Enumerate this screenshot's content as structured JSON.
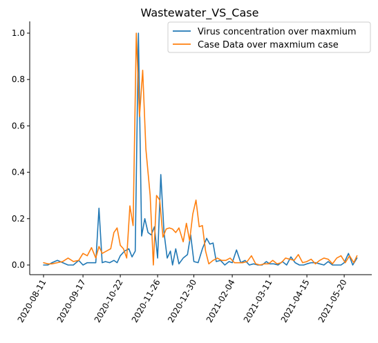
{
  "chart_data": {
    "type": "line",
    "title": "Wastewater_VS_Case",
    "xlabel": "",
    "ylabel": "",
    "x_tick_labels": [
      "2020-08-11",
      "2020-09-17",
      "2020-10-22",
      "2020-11-26",
      "2020-12-30",
      "2021-02-04",
      "2021-03-11",
      "2021-04-15",
      "2021-05-20"
    ],
    "ylim": [
      -0.04,
      1.05
    ],
    "yticks": [
      0.0,
      0.2,
      0.4,
      0.6,
      0.8,
      1.0
    ],
    "ytick_labels": [
      "0.0",
      "0.2",
      "0.4",
      "0.6",
      "0.8",
      "1.0"
    ],
    "grid": false,
    "legend_position": "top-right",
    "series": [
      {
        "name": "Virus concentration over maxmium",
        "color": "#1f77b4",
        "points": [
          [
            "2020-08-11",
            0.0
          ],
          [
            "2020-08-15",
            0.0
          ],
          [
            "2020-08-19",
            0.01
          ],
          [
            "2020-08-24",
            0.02
          ],
          [
            "2020-08-29",
            0.01
          ],
          [
            "2020-09-03",
            0.0
          ],
          [
            "2020-09-08",
            0.0
          ],
          [
            "2020-09-13",
            0.02
          ],
          [
            "2020-09-17",
            0.0
          ],
          [
            "2020-09-21",
            0.01
          ],
          [
            "2020-09-25",
            0.01
          ],
          [
            "2020-09-29",
            0.01
          ],
          [
            "2020-10-02",
            0.245
          ],
          [
            "2020-10-05",
            0.01
          ],
          [
            "2020-10-08",
            0.015
          ],
          [
            "2020-10-12",
            0.01
          ],
          [
            "2020-10-16",
            0.02
          ],
          [
            "2020-10-19",
            0.01
          ],
          [
            "2020-10-22",
            0.04
          ],
          [
            "2020-10-26",
            0.06
          ],
          [
            "2020-10-30",
            0.07
          ],
          [
            "2020-11-02",
            0.035
          ],
          [
            "2020-11-05",
            0.06
          ],
          [
            "2020-11-08",
            1.0
          ],
          [
            "2020-11-11",
            0.125
          ],
          [
            "2020-11-14",
            0.2
          ],
          [
            "2020-11-17",
            0.14
          ],
          [
            "2020-11-20",
            0.13
          ],
          [
            "2020-11-23",
            0.165
          ],
          [
            "2020-11-26",
            0.03
          ],
          [
            "2020-11-29",
            0.39
          ],
          [
            "2020-12-02",
            0.14
          ],
          [
            "2020-12-05",
            0.03
          ],
          [
            "2020-12-08",
            0.06
          ],
          [
            "2020-12-10",
            0.0
          ],
          [
            "2020-12-13",
            0.07
          ],
          [
            "2020-12-16",
            0.005
          ],
          [
            "2020-12-20",
            0.03
          ],
          [
            "2020-12-24",
            0.045
          ],
          [
            "2020-12-27",
            0.13
          ],
          [
            "2020-12-30",
            0.015
          ],
          [
            "2021-01-03",
            0.01
          ],
          [
            "2021-01-07",
            0.07
          ],
          [
            "2021-01-11",
            0.115
          ],
          [
            "2021-01-14",
            0.09
          ],
          [
            "2021-01-17",
            0.095
          ],
          [
            "2021-01-20",
            0.015
          ],
          [
            "2021-01-24",
            0.02
          ],
          [
            "2021-01-28",
            0.0
          ],
          [
            "2021-02-01",
            0.015
          ],
          [
            "2021-02-04",
            0.01
          ],
          [
            "2021-02-08",
            0.065
          ],
          [
            "2021-02-12",
            0.01
          ],
          [
            "2021-02-16",
            0.02
          ],
          [
            "2021-02-20",
            0.0
          ],
          [
            "2021-02-24",
            0.005
          ],
          [
            "2021-02-28",
            0.0
          ],
          [
            "2021-03-04",
            0.0
          ],
          [
            "2021-03-08",
            0.015
          ],
          [
            "2021-03-11",
            0.005
          ],
          [
            "2021-03-15",
            0.005
          ],
          [
            "2021-03-19",
            0.0
          ],
          [
            "2021-03-23",
            0.015
          ],
          [
            "2021-03-27",
            0.0
          ],
          [
            "2021-03-31",
            0.035
          ],
          [
            "2021-04-04",
            0.01
          ],
          [
            "2021-04-08",
            0.0
          ],
          [
            "2021-04-12",
            0.0
          ],
          [
            "2021-04-15",
            0.005
          ],
          [
            "2021-04-19",
            0.01
          ],
          [
            "2021-04-23",
            0.01
          ],
          [
            "2021-04-27",
            0.005
          ],
          [
            "2021-05-01",
            0.0
          ],
          [
            "2021-05-05",
            0.015
          ],
          [
            "2021-05-09",
            0.0
          ],
          [
            "2021-05-13",
            0.0
          ],
          [
            "2021-05-17",
            0.0
          ],
          [
            "2021-05-20",
            0.01
          ],
          [
            "2021-05-24",
            0.05
          ],
          [
            "2021-05-28",
            0.0
          ],
          [
            "2021-06-01",
            0.03
          ]
        ]
      },
      {
        "name": "Case Data over maxmium case",
        "color": "#ff7f0e",
        "points": [
          [
            "2020-08-11",
            0.01
          ],
          [
            "2020-08-15",
            0.005
          ],
          [
            "2020-08-19",
            0.005
          ],
          [
            "2020-08-24",
            0.01
          ],
          [
            "2020-08-29",
            0.015
          ],
          [
            "2020-09-03",
            0.03
          ],
          [
            "2020-09-08",
            0.015
          ],
          [
            "2020-09-13",
            0.02
          ],
          [
            "2020-09-17",
            0.05
          ],
          [
            "2020-09-21",
            0.04
          ],
          [
            "2020-09-25",
            0.075
          ],
          [
            "2020-09-29",
            0.03
          ],
          [
            "2020-10-02",
            0.08
          ],
          [
            "2020-10-05",
            0.05
          ],
          [
            "2020-10-09",
            0.06
          ],
          [
            "2020-10-13",
            0.07
          ],
          [
            "2020-10-16",
            0.14
          ],
          [
            "2020-10-19",
            0.16
          ],
          [
            "2020-10-22",
            0.085
          ],
          [
            "2020-10-25",
            0.07
          ],
          [
            "2020-10-28",
            0.03
          ],
          [
            "2020-10-31",
            0.255
          ],
          [
            "2020-11-03",
            0.17
          ],
          [
            "2020-11-06",
            1.0
          ],
          [
            "2020-11-09",
            0.64
          ],
          [
            "2020-11-12",
            0.84
          ],
          [
            "2020-11-15",
            0.5
          ],
          [
            "2020-11-19",
            0.3
          ],
          [
            "2020-11-22",
            0.0
          ],
          [
            "2020-11-25",
            0.3
          ],
          [
            "2020-11-28",
            0.28
          ],
          [
            "2020-12-01",
            0.12
          ],
          [
            "2020-12-04",
            0.155
          ],
          [
            "2020-12-07",
            0.16
          ],
          [
            "2020-12-10",
            0.155
          ],
          [
            "2020-12-13",
            0.14
          ],
          [
            "2020-12-16",
            0.16
          ],
          [
            "2020-12-20",
            0.1
          ],
          [
            "2020-12-23",
            0.18
          ],
          [
            "2020-12-26",
            0.105
          ],
          [
            "2020-12-29",
            0.22
          ],
          [
            "2021-01-01",
            0.28
          ],
          [
            "2021-01-04",
            0.165
          ],
          [
            "2021-01-07",
            0.17
          ],
          [
            "2021-01-10",
            0.06
          ],
          [
            "2021-01-13",
            0.005
          ],
          [
            "2021-01-17",
            0.02
          ],
          [
            "2021-01-21",
            0.03
          ],
          [
            "2021-01-25",
            0.02
          ],
          [
            "2021-01-29",
            0.02
          ],
          [
            "2021-02-02",
            0.03
          ],
          [
            "2021-02-06",
            0.01
          ],
          [
            "2021-02-10",
            0.01
          ],
          [
            "2021-02-14",
            0.01
          ],
          [
            "2021-02-18",
            0.015
          ],
          [
            "2021-02-22",
            0.04
          ],
          [
            "2021-02-26",
            0.005
          ],
          [
            "2021-03-02",
            0.0
          ],
          [
            "2021-03-06",
            0.005
          ],
          [
            "2021-03-10",
            0.005
          ],
          [
            "2021-03-14",
            0.02
          ],
          [
            "2021-03-18",
            0.005
          ],
          [
            "2021-03-22",
            0.01
          ],
          [
            "2021-03-26",
            0.03
          ],
          [
            "2021-03-30",
            0.025
          ],
          [
            "2021-04-03",
            0.02
          ],
          [
            "2021-04-07",
            0.045
          ],
          [
            "2021-04-11",
            0.01
          ],
          [
            "2021-04-15",
            0.015
          ],
          [
            "2021-04-19",
            0.025
          ],
          [
            "2021-04-23",
            0.005
          ],
          [
            "2021-04-27",
            0.02
          ],
          [
            "2021-05-01",
            0.03
          ],
          [
            "2021-05-05",
            0.025
          ],
          [
            "2021-05-09",
            0.005
          ],
          [
            "2021-05-13",
            0.03
          ],
          [
            "2021-05-17",
            0.04
          ],
          [
            "2021-05-21",
            0.01
          ],
          [
            "2021-05-25",
            0.04
          ],
          [
            "2021-05-29",
            0.01
          ],
          [
            "2021-06-01",
            0.04
          ]
        ]
      }
    ]
  }
}
